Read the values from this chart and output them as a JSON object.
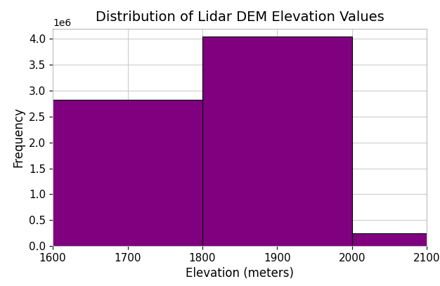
{
  "title": "Distribution of Lidar DEM Elevation Values",
  "xlabel": "Elevation (meters)",
  "ylabel": "Frequency",
  "bar_color": "#800080",
  "bar_edgecolor": "#000000",
  "bin_edges": [
    1600,
    1800,
    2000,
    2100
  ],
  "frequencies": [
    2820000,
    4050000,
    250000
  ],
  "xlim": [
    1600,
    2100
  ],
  "ylim": [
    0,
    4200000
  ],
  "title_fontsize": 14,
  "label_fontsize": 12,
  "tick_fontsize": 11,
  "grid": true,
  "background_color": "#ffffff"
}
